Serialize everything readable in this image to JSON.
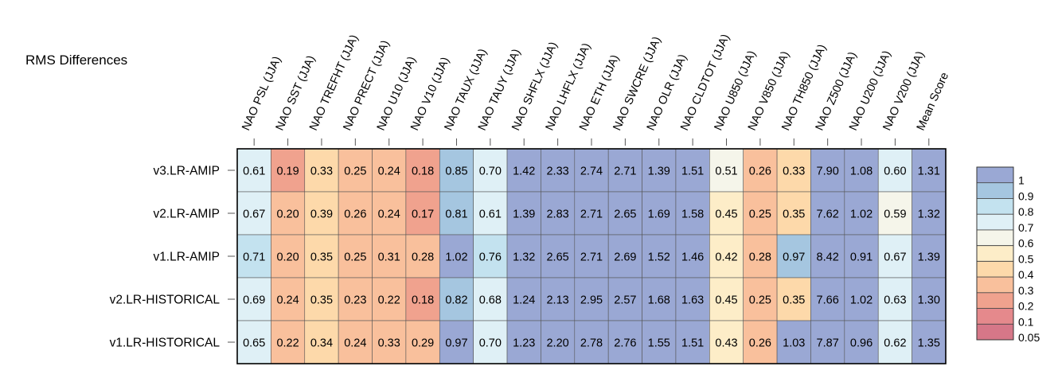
{
  "chart_data": {
    "type": "heatmap",
    "title": "RMS Differences",
    "columns": [
      "NAO PSL (JJA)",
      "NAO SST (JJA)",
      "NAO TREFHT (JJA)",
      "NAO PRECT (JJA)",
      "NAO U10 (JJA)",
      "NAO V10 (JJA)",
      "NAO TAUX (JJA)",
      "NAO TAUY (JJA)",
      "NAO SHFLX (JJA)",
      "NAO LHFLX (JJA)",
      "NAO ETH (JJA)",
      "NAO SWCRE (JJA)",
      "NAO OLR (JJA)",
      "NAO CLDTOT (JJA)",
      "NAO U850 (JJA)",
      "NAO V850 (JJA)",
      "NAO TH850 (JJA)",
      "NAO Z500 (JJA)",
      "NAO U200 (JJA)",
      "NAO V200 (JJA)",
      "Mean Score"
    ],
    "rows": [
      "v3.LR-AMIP",
      "v2.LR-AMIP",
      "v1.LR-AMIP",
      "v2.LR-HISTORICAL",
      "v1.LR-HISTORICAL"
    ],
    "values": [
      [
        "0.61",
        "0.19",
        "0.33",
        "0.25",
        "0.24",
        "0.18",
        "0.85",
        "0.70",
        "1.42",
        "2.33",
        "2.74",
        "2.71",
        "1.39",
        "1.51",
        "0.51",
        "0.26",
        "0.33",
        "7.90",
        "1.08",
        "0.60",
        "1.31"
      ],
      [
        "0.67",
        "0.20",
        "0.39",
        "0.26",
        "0.24",
        "0.17",
        "0.81",
        "0.61",
        "1.39",
        "2.83",
        "2.71",
        "2.65",
        "1.69",
        "1.58",
        "0.45",
        "0.25",
        "0.35",
        "7.62",
        "1.02",
        "0.59",
        "1.32"
      ],
      [
        "0.71",
        "0.20",
        "0.35",
        "0.25",
        "0.31",
        "0.28",
        "1.02",
        "0.76",
        "1.32",
        "2.65",
        "2.71",
        "2.69",
        "1.52",
        "1.46",
        "0.42",
        "0.28",
        "0.97",
        "8.42",
        "0.91",
        "0.67",
        "1.39"
      ],
      [
        "0.69",
        "0.24",
        "0.35",
        "0.23",
        "0.22",
        "0.18",
        "0.82",
        "0.68",
        "1.24",
        "2.13",
        "2.95",
        "2.57",
        "1.68",
        "1.63",
        "0.45",
        "0.25",
        "0.35",
        "7.66",
        "1.02",
        "0.63",
        "1.30"
      ],
      [
        "0.65",
        "0.22",
        "0.34",
        "0.24",
        "0.33",
        "0.29",
        "0.97",
        "0.70",
        "1.23",
        "2.20",
        "2.78",
        "2.76",
        "1.55",
        "1.51",
        "0.43",
        "0.26",
        "1.03",
        "7.87",
        "0.96",
        "0.62",
        "1.35"
      ]
    ],
    "cell_color_levels": [
      [
        0.7,
        0.2,
        0.4,
        0.3,
        0.3,
        0.2,
        0.9,
        0.7,
        1,
        1,
        1,
        1,
        1,
        1,
        0.6,
        0.3,
        0.4,
        1,
        1,
        0.7,
        1
      ],
      [
        0.7,
        0.3,
        0.4,
        0.3,
        0.3,
        0.2,
        0.9,
        0.7,
        1,
        1,
        1,
        1,
        1,
        1,
        0.5,
        0.3,
        0.4,
        1,
        1,
        0.6,
        1
      ],
      [
        0.8,
        0.3,
        0.4,
        0.3,
        0.3,
        0.3,
        1,
        0.8,
        1,
        1,
        1,
        1,
        1,
        1,
        0.5,
        0.3,
        0.9,
        1,
        1,
        0.7,
        1
      ],
      [
        0.7,
        0.3,
        0.4,
        0.3,
        0.3,
        0.2,
        0.9,
        0.7,
        1,
        1,
        1,
        1,
        1,
        1,
        0.5,
        0.3,
        0.4,
        1,
        1,
        0.7,
        1
      ],
      [
        0.7,
        0.3,
        0.4,
        0.3,
        0.3,
        0.3,
        1,
        0.7,
        1,
        1,
        1,
        1,
        1,
        1,
        0.5,
        0.3,
        1,
        1,
        1,
        0.7,
        1
      ]
    ],
    "legend": {
      "labels": [
        "1",
        "0.9",
        "0.8",
        "0.7",
        "0.6",
        "0.5",
        "0.4",
        "0.3",
        "0.2",
        "0.1",
        "0.05"
      ],
      "colors": [
        "#9aa8d4",
        "#a5c6e0",
        "#c3e2ef",
        "#dff0f6",
        "#f5f5ea",
        "#fdedc8",
        "#fdd9aa",
        "#f9c09c",
        "#f0a28e",
        "#e5898c",
        "#d67788"
      ],
      "placement": "right"
    }
  }
}
